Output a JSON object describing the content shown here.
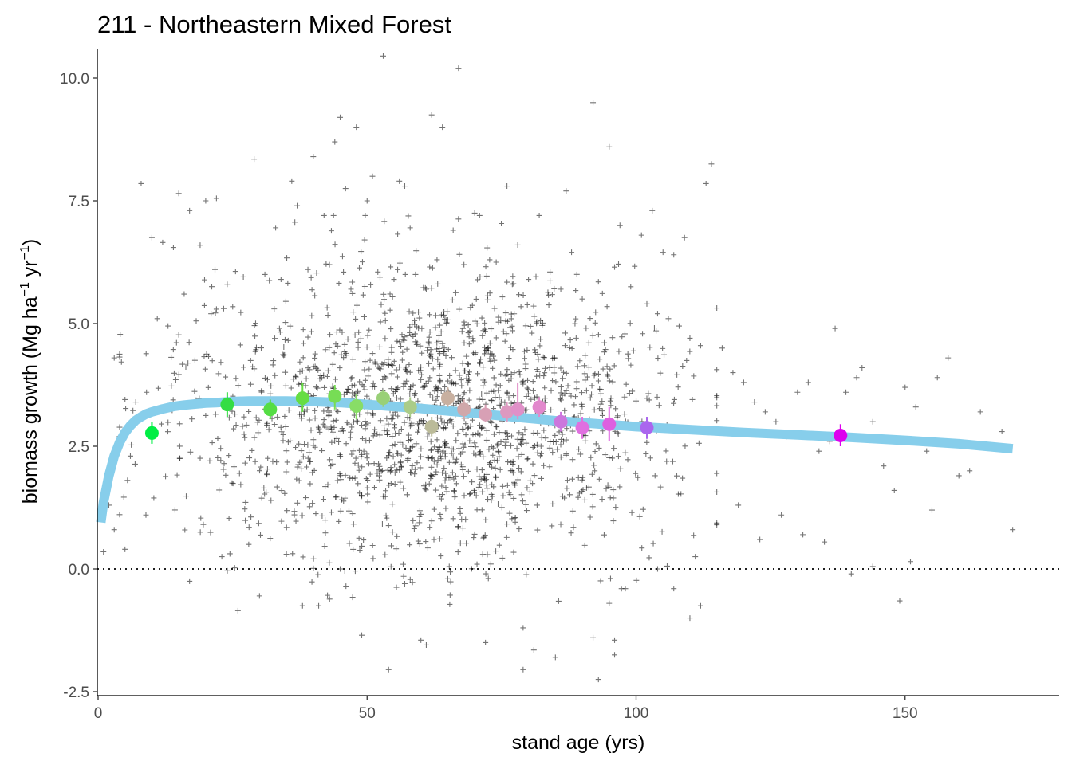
{
  "chart_data": {
    "type": "scatter",
    "title": "211 - Northeastern Mixed Forest",
    "xlabel": "stand age (yrs)",
    "ylabel": {
      "main": "biomass growth (Mg ha",
      "sup1": "−1",
      "mid": " yr",
      "sup2": "−1",
      "end": ")"
    },
    "xlim": [
      0,
      178
    ],
    "ylim": [
      -2.55,
      10.55
    ],
    "x_ticks": [
      0,
      50,
      100,
      150
    ],
    "x_tick_labels": [
      "0",
      "50",
      "100",
      "150"
    ],
    "y_ticks": [
      -2.5,
      0,
      2.5,
      5,
      7.5,
      10
    ],
    "y_tick_labels": [
      "-2.5",
      "0.0",
      "2.5",
      "5.0",
      "7.5",
      "10.0"
    ],
    "grid": false,
    "reference_line": {
      "y": 0,
      "style": "dotted",
      "color": "#000000"
    },
    "scatter_style": {
      "marker": "+",
      "color": "#000000",
      "opacity": 0.55
    },
    "scatter_points": [
      [
        53,
        10.45
      ],
      [
        67,
        10.2
      ],
      [
        92,
        9.5
      ],
      [
        45,
        9.2
      ],
      [
        62,
        9.25
      ],
      [
        64,
        9.0
      ],
      [
        48,
        9.0
      ],
      [
        44,
        8.7
      ],
      [
        95,
        8.6
      ],
      [
        114,
        8.25
      ],
      [
        29,
        8.35
      ],
      [
        40,
        8.4
      ],
      [
        36,
        7.9
      ],
      [
        51,
        8.0
      ],
      [
        56,
        7.9
      ],
      [
        15,
        7.65
      ],
      [
        22,
        7.55
      ],
      [
        20,
        7.5
      ],
      [
        37,
        7.4
      ],
      [
        46,
        7.75
      ],
      [
        57,
        7.8
      ],
      [
        76,
        7.8
      ],
      [
        87,
        7.7
      ],
      [
        113,
        7.85
      ],
      [
        8,
        7.85
      ],
      [
        17,
        7.3
      ],
      [
        50,
        7.5
      ],
      [
        42,
        7.2
      ],
      [
        70,
        7.25
      ],
      [
        82,
        7.2
      ],
      [
        103,
        7.3
      ],
      [
        97,
        7.0
      ],
      [
        101,
        6.8
      ],
      [
        109,
        6.75
      ],
      [
        10,
        6.75
      ],
      [
        12,
        6.65
      ],
      [
        14,
        6.55
      ],
      [
        33,
        6.95
      ],
      [
        58,
        6.95
      ],
      [
        66,
        6.9
      ],
      [
        78,
        6.6
      ],
      [
        88,
        6.45
      ],
      [
        105,
        6.45
      ],
      [
        107,
        6.4
      ],
      [
        3,
        4.3
      ],
      [
        5,
        3.45
      ],
      [
        7,
        3.4
      ],
      [
        4,
        2.7
      ],
      [
        6,
        2.3
      ],
      [
        2,
        1.3
      ],
      [
        1,
        0.35
      ],
      [
        3,
        0.8
      ],
      [
        5,
        0.4
      ],
      [
        9,
        3.6
      ],
      [
        11,
        5.1
      ],
      [
        13,
        4.95
      ],
      [
        16,
        5.6
      ],
      [
        18,
        4.25
      ],
      [
        21,
        5.2
      ],
      [
        24,
        5.8
      ],
      [
        27,
        5.95
      ],
      [
        31,
        6.0
      ],
      [
        34,
        5.9
      ],
      [
        39,
        6.1
      ],
      [
        43,
        6.2
      ],
      [
        47,
        5.7
      ],
      [
        52,
        6.05
      ],
      [
        55,
        5.9
      ],
      [
        59,
        6.0
      ],
      [
        61,
        5.7
      ],
      [
        63,
        6.3
      ],
      [
        68,
        6.2
      ],
      [
        71,
        5.95
      ],
      [
        74,
        6.25
      ],
      [
        77,
        5.8
      ],
      [
        80,
        5.9
      ],
      [
        84,
        6.05
      ],
      [
        86,
        5.7
      ],
      [
        90,
        5.5
      ],
      [
        93,
        5.85
      ],
      [
        96,
        6.15
      ],
      [
        99,
        5.75
      ],
      [
        102,
        5.4
      ],
      [
        104,
        5.2
      ],
      [
        106,
        5.1
      ],
      [
        108,
        4.95
      ],
      [
        110,
        4.7
      ],
      [
        112,
        4.55
      ],
      [
        116,
        4.5
      ],
      [
        118,
        4.0
      ],
      [
        120,
        3.8
      ],
      [
        122,
        3.4
      ],
      [
        124,
        3.2
      ],
      [
        126,
        3.0
      ],
      [
        128,
        2.7
      ],
      [
        130,
        3.6
      ],
      [
        132,
        3.8
      ],
      [
        134,
        2.4
      ],
      [
        136,
        2.6
      ],
      [
        137,
        4.9
      ],
      [
        139,
        3.6
      ],
      [
        141,
        3.9
      ],
      [
        142,
        4.1
      ],
      [
        144,
        3.0
      ],
      [
        146,
        2.1
      ],
      [
        148,
        1.6
      ],
      [
        150,
        3.7
      ],
      [
        152,
        3.3
      ],
      [
        154,
        2.4
      ],
      [
        156,
        3.9
      ],
      [
        158,
        4.3
      ],
      [
        160,
        1.9
      ],
      [
        162,
        2.0
      ],
      [
        164,
        3.2
      ],
      [
        168,
        2.8
      ],
      [
        170,
        0.8
      ],
      [
        149,
        -0.65
      ],
      [
        151,
        0.15
      ],
      [
        155,
        1.2
      ],
      [
        144,
        0.05
      ],
      [
        140,
        -0.1
      ],
      [
        135,
        0.55
      ],
      [
        131,
        0.7
      ],
      [
        127,
        1.1
      ],
      [
        123,
        0.6
      ],
      [
        119,
        1.3
      ],
      [
        115,
        0.9
      ],
      [
        111,
        0.25
      ],
      [
        112,
        -0.75
      ],
      [
        110,
        -1.0
      ],
      [
        107,
        -0.4
      ],
      [
        104,
        0.0
      ],
      [
        98,
        -0.4
      ],
      [
        95,
        -0.7
      ],
      [
        92,
        -1.4
      ],
      [
        93,
        -2.25
      ],
      [
        96,
        -1.45
      ],
      [
        96,
        -1.75
      ],
      [
        85,
        -1.8
      ],
      [
        79,
        -1.2
      ],
      [
        79,
        -2.05
      ],
      [
        81,
        -1.65
      ],
      [
        72,
        -1.5
      ],
      [
        60,
        -1.45
      ],
      [
        61,
        -1.55
      ],
      [
        54,
        -2.05
      ],
      [
        49,
        -1.35
      ],
      [
        41,
        -0.75
      ],
      [
        38,
        -0.75
      ],
      [
        30,
        -0.55
      ],
      [
        26,
        -0.85
      ],
      [
        17,
        -0.25
      ],
      [
        19,
        0.75
      ],
      [
        23,
        0.25
      ],
      [
        28,
        0.5
      ],
      [
        35,
        0.3
      ],
      [
        45,
        0.0
      ],
      [
        57,
        -0.3
      ],
      [
        65,
        -0.2
      ],
      [
        73,
        0.1
      ]
    ],
    "fit_line": {
      "color": "#87CEEB",
      "x": [
        0.5,
        1,
        2,
        3,
        4,
        5,
        6,
        7,
        8,
        9,
        10,
        12,
        14,
        16,
        18,
        20,
        22,
        25,
        28,
        30,
        35,
        40,
        45,
        50,
        55,
        60,
        65,
        70,
        75,
        80,
        85,
        90,
        95,
        100,
        105,
        110,
        120,
        130,
        140,
        150,
        160,
        170
      ],
      "y": [
        0.95,
        1.35,
        1.9,
        2.3,
        2.58,
        2.78,
        2.92,
        3.03,
        3.1,
        3.16,
        3.2,
        3.26,
        3.31,
        3.34,
        3.36,
        3.38,
        3.39,
        3.41,
        3.42,
        3.42,
        3.42,
        3.41,
        3.39,
        3.35,
        3.31,
        3.27,
        3.22,
        3.17,
        3.12,
        3.07,
        3.02,
        2.98,
        2.94,
        2.9,
        2.87,
        2.84,
        2.78,
        2.73,
        2.68,
        2.62,
        2.55,
        2.45
      ]
    },
    "binned_means": [
      {
        "x": 10,
        "y": 2.77,
        "lo": 2.55,
        "hi": 3.0,
        "color": "#00EE44"
      },
      {
        "x": 24,
        "y": 3.35,
        "lo": 3.1,
        "hi": 3.6,
        "color": "#33DD44"
      },
      {
        "x": 32,
        "y": 3.25,
        "lo": 3.05,
        "hi": 3.45,
        "color": "#55DD44"
      },
      {
        "x": 38,
        "y": 3.48,
        "lo": 3.2,
        "hi": 3.8,
        "color": "#66DD44"
      },
      {
        "x": 44,
        "y": 3.52,
        "lo": 3.25,
        "hi": 3.75,
        "color": "#77DD55"
      },
      {
        "x": 48,
        "y": 3.32,
        "lo": 3.05,
        "hi": 3.55,
        "color": "#88DD66"
      },
      {
        "x": 53,
        "y": 3.48,
        "lo": 3.3,
        "hi": 3.65,
        "color": "#99D077"
      },
      {
        "x": 58,
        "y": 3.3,
        "lo": 3.1,
        "hi": 3.5,
        "color": "#AACC88"
      },
      {
        "x": 62,
        "y": 2.9,
        "lo": 2.7,
        "hi": 3.1,
        "color": "#BBBB99"
      },
      {
        "x": 65,
        "y": 3.48,
        "lo": 3.3,
        "hi": 3.7,
        "color": "#C8B0A0"
      },
      {
        "x": 68,
        "y": 3.25,
        "lo": 3.05,
        "hi": 3.45,
        "color": "#D0A8AA"
      },
      {
        "x": 72,
        "y": 3.15,
        "lo": 3.0,
        "hi": 3.35,
        "color": "#D8A0B5"
      },
      {
        "x": 76,
        "y": 3.2,
        "lo": 3.0,
        "hi": 3.4,
        "color": "#DD99C0"
      },
      {
        "x": 78,
        "y": 3.25,
        "lo": 3.05,
        "hi": 3.8,
        "color": "#E090C8"
      },
      {
        "x": 82,
        "y": 3.3,
        "lo": 3.1,
        "hi": 3.5,
        "color": "#E288CC"
      },
      {
        "x": 86,
        "y": 3.0,
        "lo": 2.8,
        "hi": 3.2,
        "color": "#CC77DD"
      },
      {
        "x": 90,
        "y": 2.88,
        "lo": 2.65,
        "hi": 3.1,
        "color": "#E070E0"
      },
      {
        "x": 95,
        "y": 2.95,
        "lo": 2.6,
        "hi": 3.3,
        "color": "#DD60E0"
      },
      {
        "x": 102,
        "y": 2.88,
        "lo": 2.65,
        "hi": 3.1,
        "color": "#AA66EE"
      },
      {
        "x": 138,
        "y": 2.72,
        "lo": 2.5,
        "hi": 2.95,
        "color": "#DD00EE"
      }
    ]
  }
}
